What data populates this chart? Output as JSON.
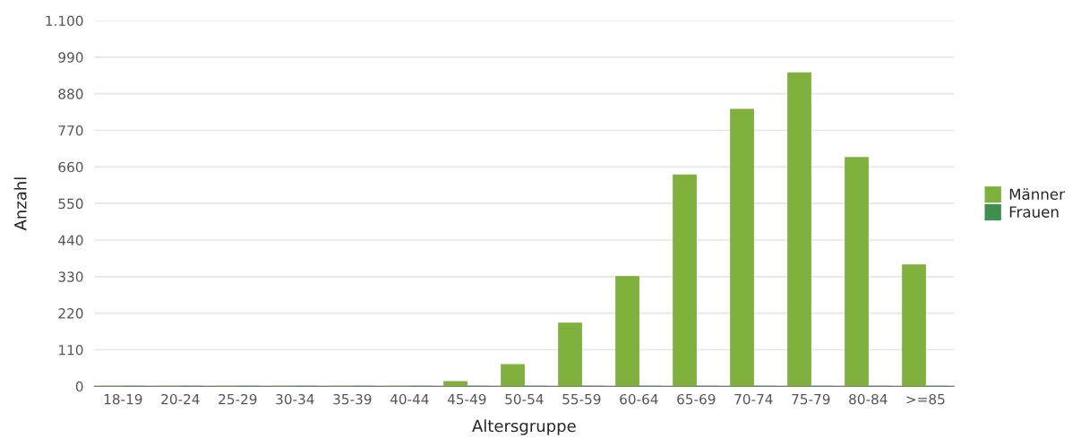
{
  "chart_data": {
    "type": "bar",
    "xlabel": "Altersgruppe",
    "ylabel": "Anzahl",
    "categories": [
      "18-19",
      "20-24",
      "25-29",
      "30-34",
      "35-39",
      "40-44",
      "45-49",
      "50-54",
      "55-59",
      "60-64",
      "65-69",
      "70-74",
      "75-79",
      "80-84",
      ">=85"
    ],
    "series": [
      {
        "name": "Männer",
        "color": "#80b03c",
        "values": [
          0,
          0,
          0,
          0,
          0,
          0,
          14,
          65,
          190,
          330,
          636,
          833,
          943,
          688,
          365
        ]
      },
      {
        "name": "Frauen",
        "color": "#3f8f4f",
        "values": [
          0,
          0,
          0,
          0,
          0,
          0,
          0,
          0,
          0,
          0,
          0,
          0,
          0,
          0,
          0
        ]
      }
    ],
    "ylim": [
      0,
      1100
    ],
    "yticks": [
      0,
      110,
      220,
      330,
      440,
      550,
      660,
      770,
      880,
      990,
      {
        "value": 1100,
        "label": "1.100"
      }
    ],
    "grid": "y",
    "legend": "right"
  }
}
